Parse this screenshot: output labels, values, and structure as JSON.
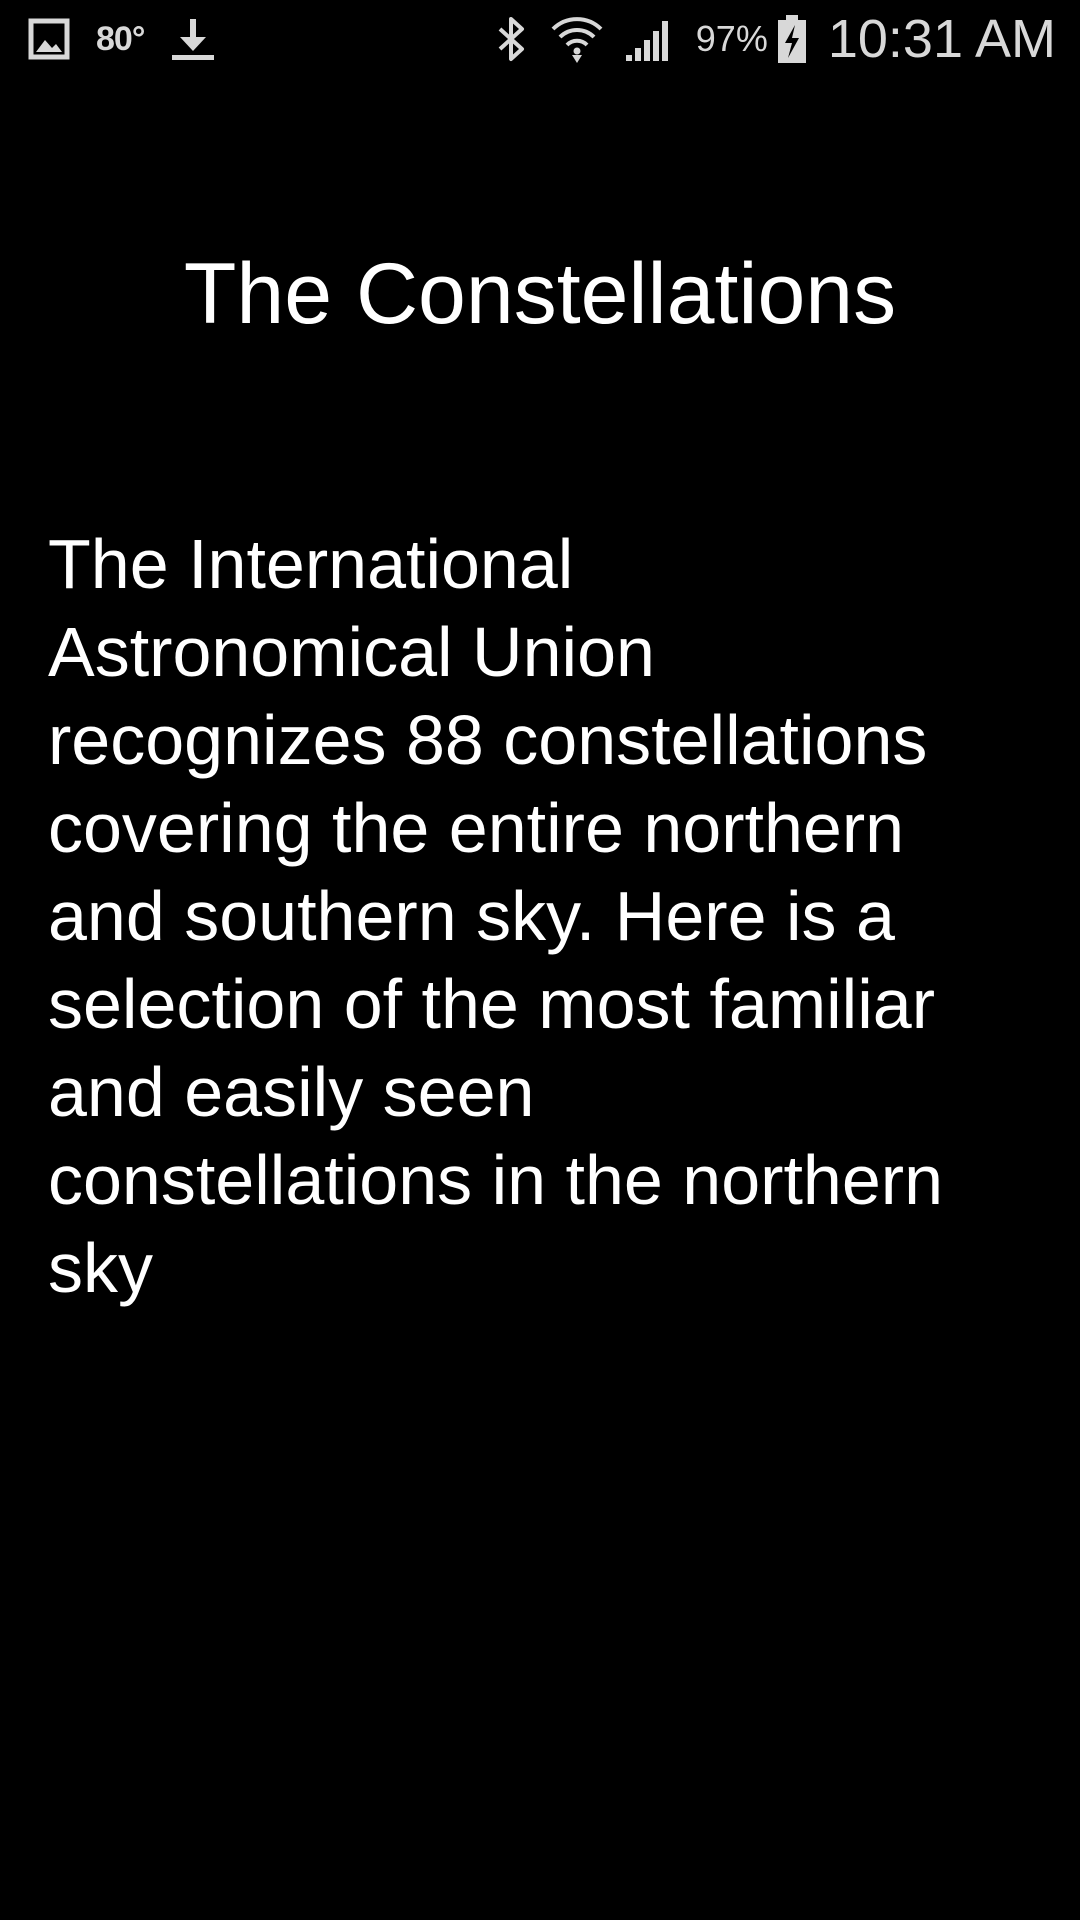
{
  "status_bar": {
    "left_icons": [
      "gallery-icon",
      "download-icon"
    ],
    "temperature": "80°",
    "right_icons": [
      "bluetooth-icon",
      "wifi-icon",
      "signal-icon",
      "battery-charging-icon"
    ],
    "battery_percent": "97%",
    "time": "10:31 AM"
  },
  "screen": {
    "title": "The Constellations",
    "lines": [
      "The International",
      "Astronomical Union",
      "recognizes 88 constellations",
      "covering the entire northern",
      "and southern sky. Here is a",
      "selection of the most familiar",
      "and easily seen",
      "constellations in the northern",
      "sky"
    ]
  }
}
